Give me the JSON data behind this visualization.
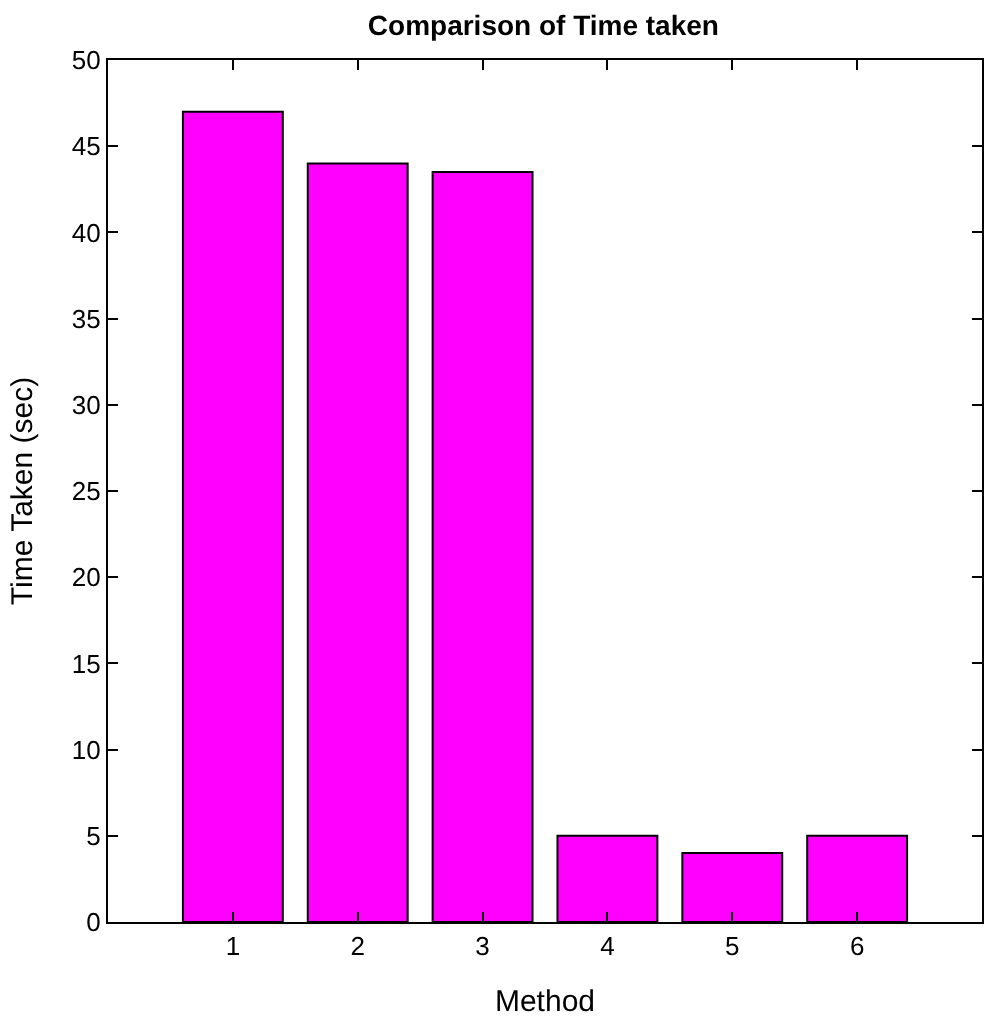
{
  "chart_data": {
    "type": "bar",
    "title": "Comparison of Time taken",
    "xlabel": "Method",
    "ylabel": "Time Taken (sec)",
    "x": [
      1,
      2,
      3,
      4,
      5,
      6
    ],
    "values": [
      47,
      44,
      43.5,
      5,
      4,
      5
    ],
    "color": "#ff00ff",
    "xlim": [
      0,
      7
    ],
    "xticks": [
      1,
      2,
      3,
      4,
      5,
      6
    ],
    "ylim": [
      0,
      50
    ],
    "yticks": [
      0,
      5,
      10,
      15,
      20,
      25,
      30,
      35,
      40,
      45,
      50
    ]
  }
}
